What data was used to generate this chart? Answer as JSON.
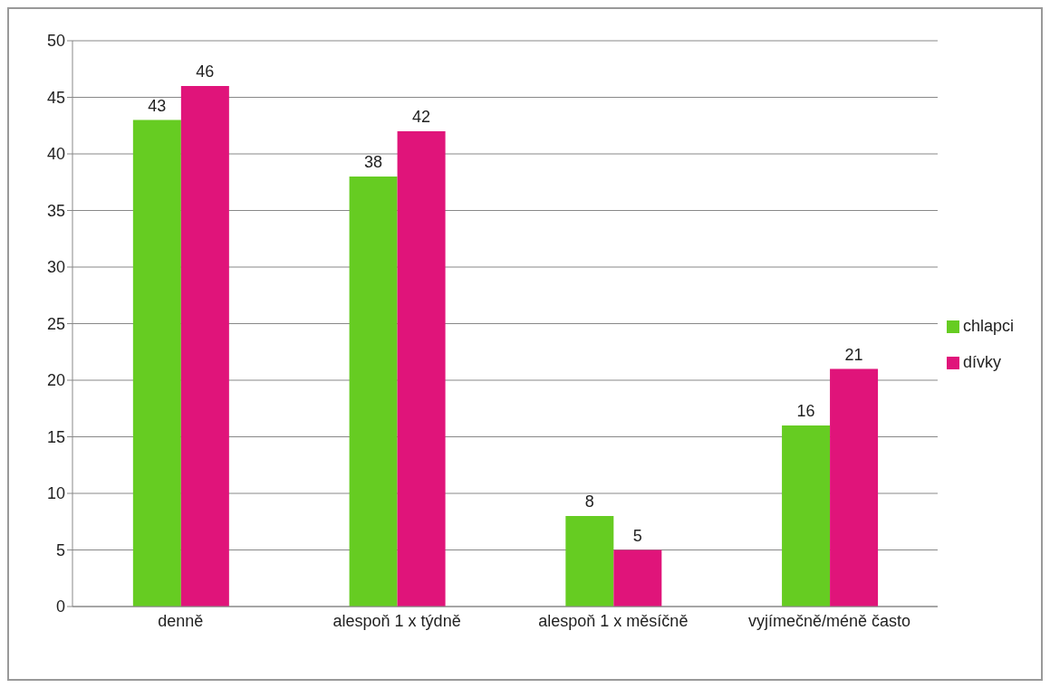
{
  "chart_data": {
    "type": "bar",
    "categories": [
      "denně",
      "alespoň 1 x týdně",
      "alespoň 1 x měsíčně",
      "vyjímečně/méně často"
    ],
    "series": [
      {
        "name": "chlapci",
        "color": "#66cc22",
        "values": [
          43,
          38,
          8,
          16
        ]
      },
      {
        "name": "dívky",
        "color": "#e0147a",
        "values": [
          46,
          42,
          5,
          21
        ]
      }
    ],
    "ylim": [
      0,
      50
    ],
    "yticks": [
      0,
      5,
      10,
      15,
      20,
      25,
      30,
      35,
      40,
      45,
      50
    ],
    "grid": "y",
    "legend": "right",
    "data_labels": true
  }
}
